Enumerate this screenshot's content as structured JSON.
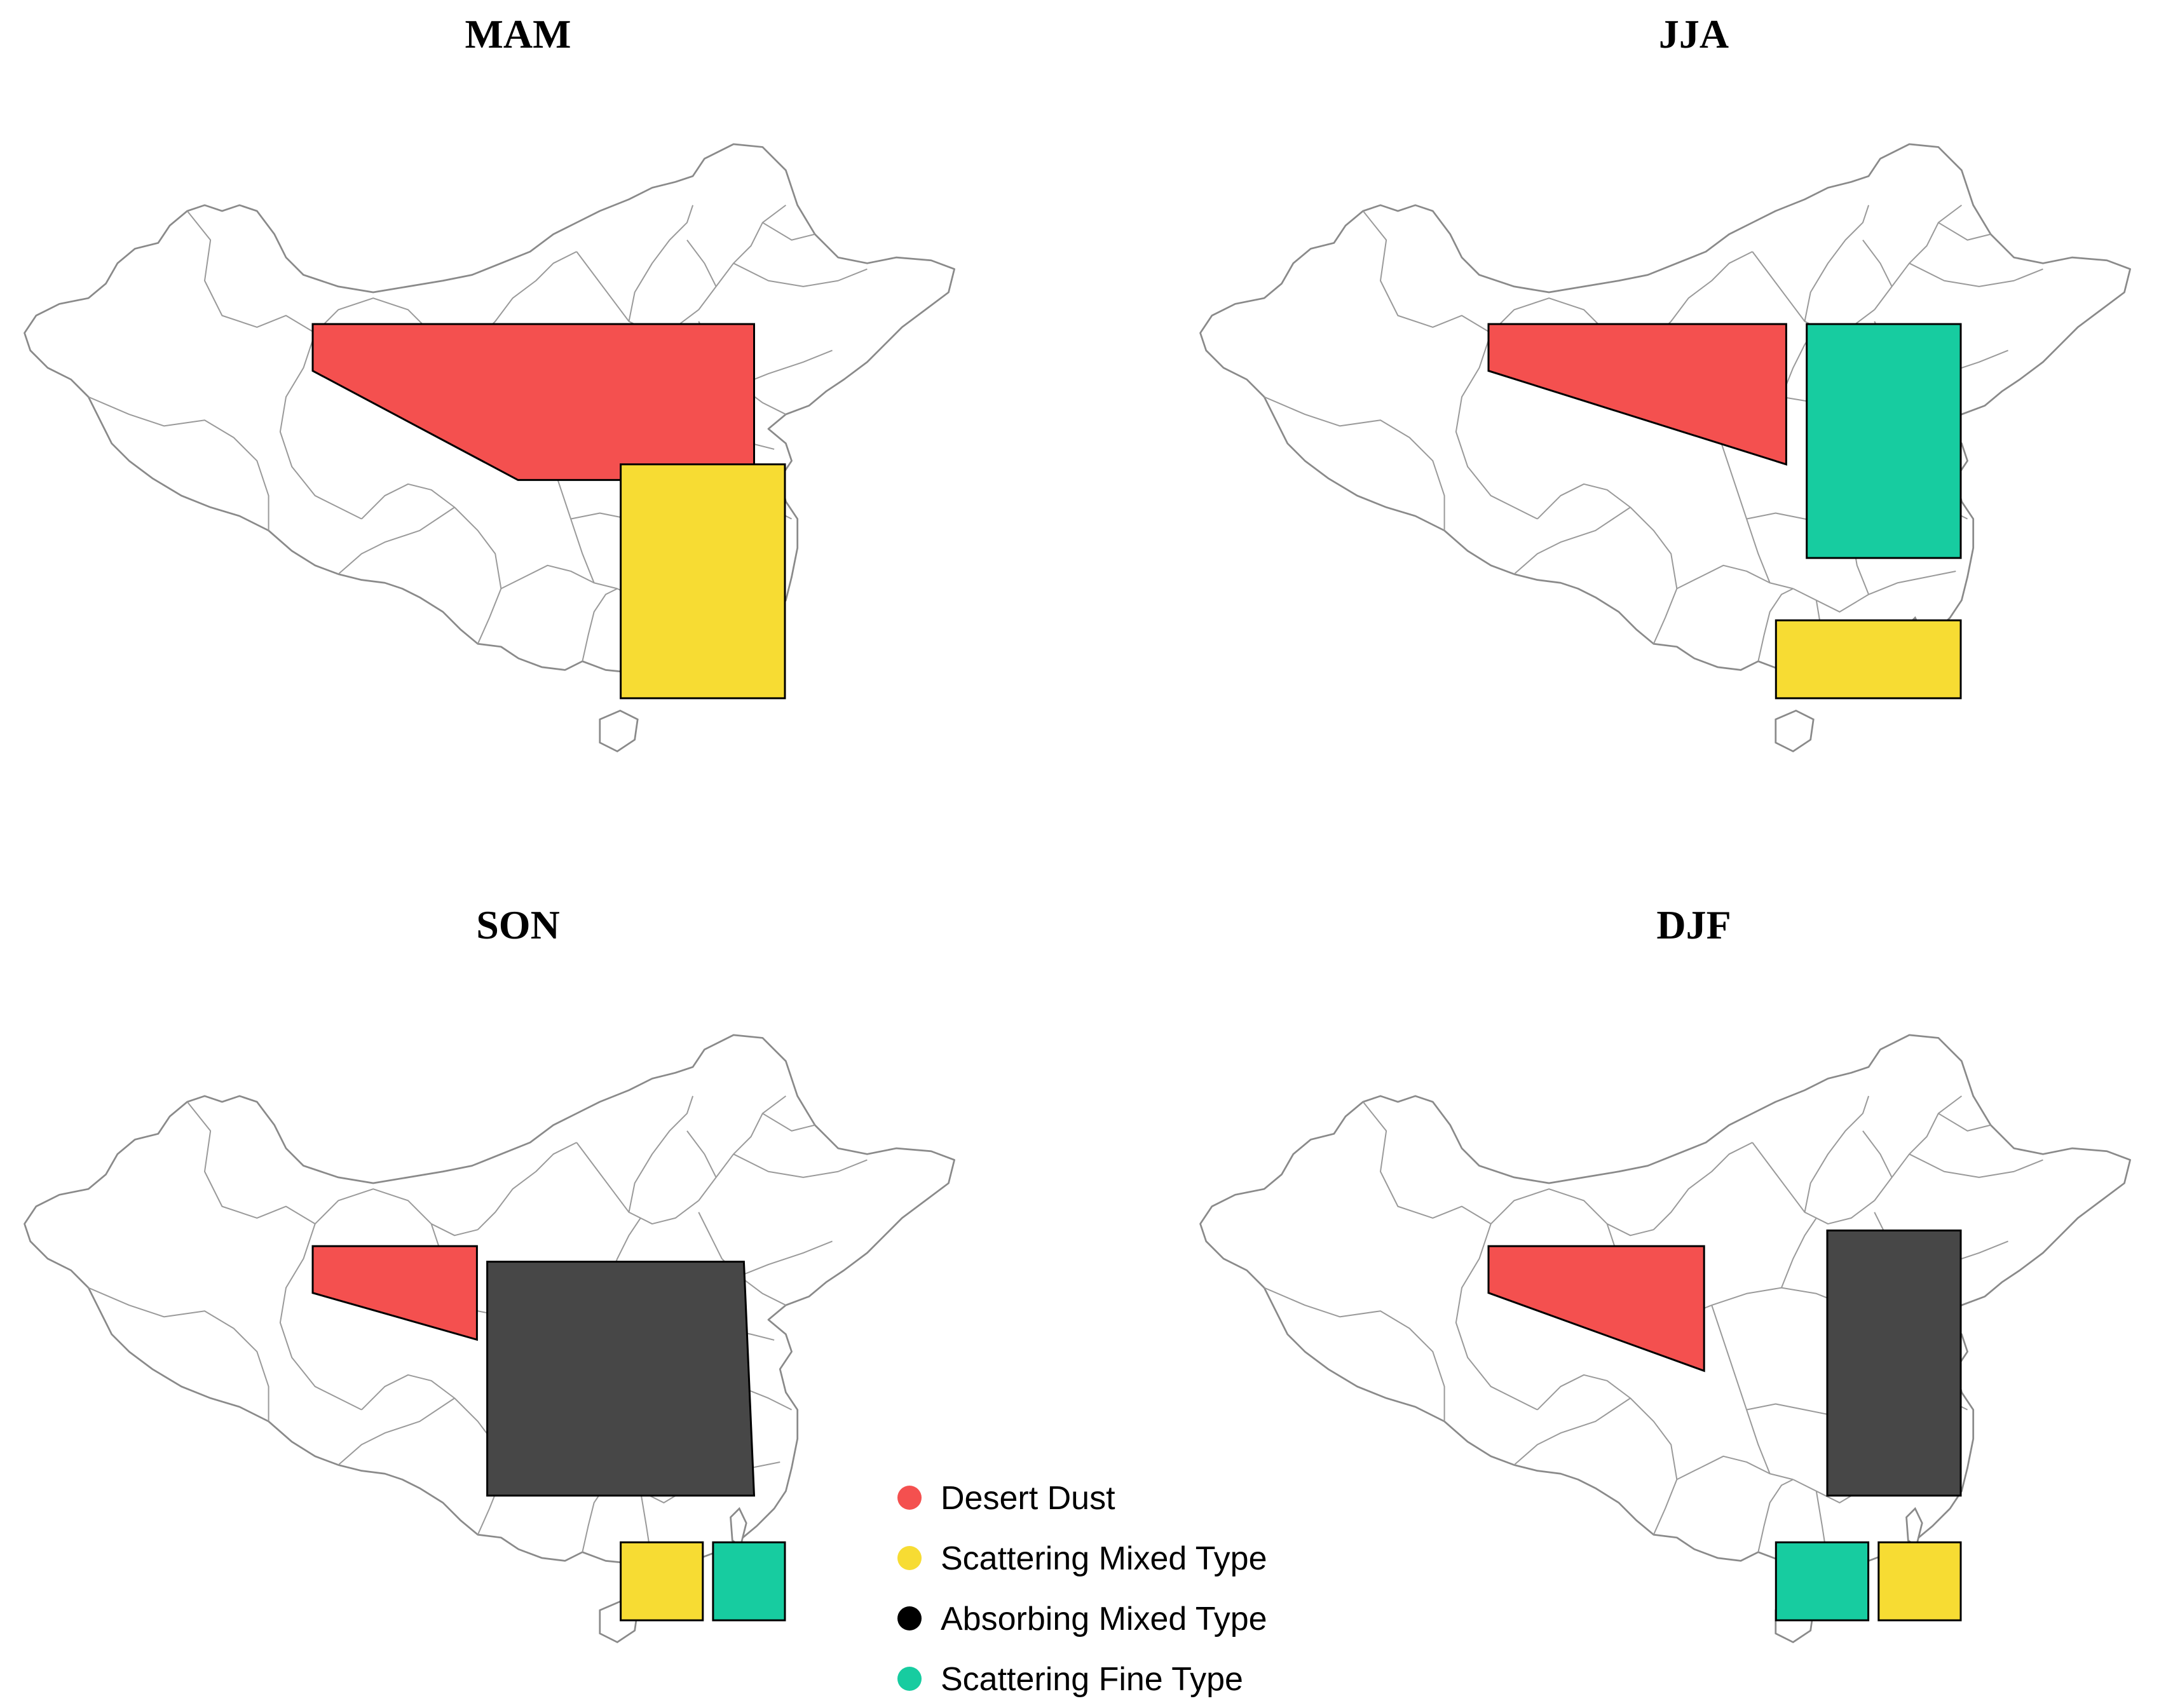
{
  "colors": {
    "Desert Dust": "#f4504f",
    "Scattering Mixed Type": "#f7dc33",
    "Absorbing Mixed Type": "#474747",
    "Scattering Fine Type": "#17cca0"
  },
  "panels": [
    {
      "title": "MAM",
      "regions": [
        {
          "type": "Desert Dust",
          "corners": [
            [
              75,
              42
            ],
            [
              118,
              42
            ],
            [
              118,
              32
            ],
            [
              95,
              32
            ],
            [
              75,
              39
            ]
          ]
        },
        {
          "type": "Scattering Mixed Type",
          "corners": [
            [
              105,
              33
            ],
            [
              121,
              33
            ],
            [
              121,
              18
            ],
            [
              105,
              18
            ]
          ]
        }
      ]
    },
    {
      "title": "JJA",
      "regions": [
        {
          "type": "Desert Dust",
          "corners": [
            [
              75,
              42
            ],
            [
              104,
              42
            ],
            [
              104,
              33
            ],
            [
              75,
              39
            ]
          ]
        },
        {
          "type": "Scattering Fine Type",
          "corners": [
            [
              106,
              42
            ],
            [
              121,
              42
            ],
            [
              121,
              27
            ],
            [
              106,
              27
            ]
          ]
        },
        {
          "type": "Scattering Mixed Type",
          "corners": [
            [
              103,
              23
            ],
            [
              121,
              23
            ],
            [
              121,
              18
            ],
            [
              103,
              18
            ]
          ]
        }
      ]
    },
    {
      "title": "SON",
      "regions": [
        {
          "type": "Desert Dust",
          "corners": [
            [
              75,
              40
            ],
            [
              91,
              40
            ],
            [
              91,
              34
            ],
            [
              75,
              37
            ]
          ]
        },
        {
          "type": "Absorbing Mixed Type",
          "corners": [
            [
              92,
              39
            ],
            [
              117,
              39
            ],
            [
              118,
              24
            ],
            [
              92,
              24
            ]
          ]
        },
        {
          "type": "Scattering Mixed Type",
          "corners": [
            [
              105,
              21
            ],
            [
              113,
              21
            ],
            [
              113,
              16
            ],
            [
              105,
              16
            ]
          ]
        },
        {
          "type": "Scattering Fine Type",
          "corners": [
            [
              114,
              21
            ],
            [
              121,
              21
            ],
            [
              121,
              16
            ],
            [
              114,
              16
            ]
          ]
        }
      ]
    },
    {
      "title": "DJF",
      "regions": [
        {
          "type": "Desert Dust",
          "corners": [
            [
              75,
              40
            ],
            [
              96,
              40
            ],
            [
              96,
              32
            ],
            [
              75,
              37
            ]
          ]
        },
        {
          "type": "Absorbing Mixed Type",
          "corners": [
            [
              108,
              41
            ],
            [
              121,
              41
            ],
            [
              121,
              24
            ],
            [
              108,
              24
            ]
          ]
        },
        {
          "type": "Scattering Fine Type",
          "corners": [
            [
              103,
              21
            ],
            [
              112,
              21
            ],
            [
              112,
              16
            ],
            [
              103,
              16
            ]
          ]
        },
        {
          "type": "Scattering Mixed Type",
          "corners": [
            [
              113,
              21
            ],
            [
              121,
              21
            ],
            [
              121,
              16
            ],
            [
              113,
              16
            ]
          ]
        }
      ]
    }
  ],
  "legend": {
    "items": [
      "Desert Dust",
      "Scattering Mixed Type",
      "Absorbing Mixed Type",
      "Scattering Fine Type"
    ]
  }
}
